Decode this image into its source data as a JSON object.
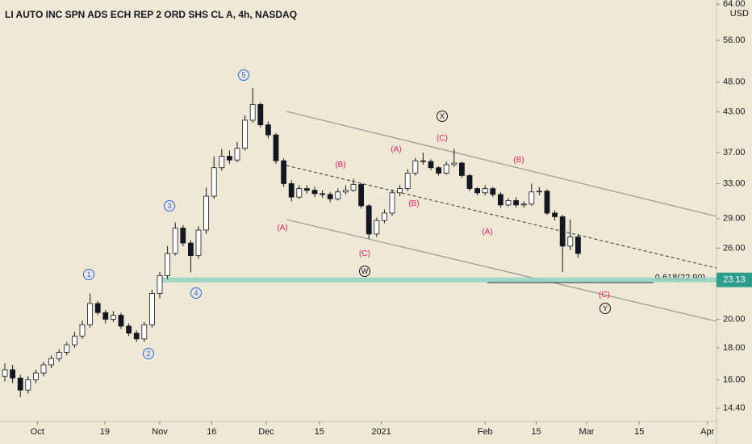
{
  "chart_data": {
    "type": "candlestick",
    "title": "LI AUTO INC SPN ADS ECH REP 2 ORD SHS CL A, 4h, NASDAQ",
    "currency": "USD",
    "log_scale": true,
    "up_color": "#ffffff",
    "down_color": "#131722",
    "open": [
      16.2,
      16.6,
      16.1,
      15.4,
      16.0,
      16.4,
      16.9,
      17.3,
      17.7,
      18.2,
      18.8,
      19.6,
      21.2,
      20.5,
      20.0,
      20.3,
      19.5,
      19.0,
      18.6,
      19.6,
      22.0,
      23.5,
      25.5,
      28.0,
      26.5,
      25.3,
      27.8,
      31.5,
      35.0,
      36.5,
      36.0,
      37.6,
      41.7,
      44.2,
      41.0,
      39.5,
      35.9,
      33.0,
      31.4,
      32.4,
      32.2,
      31.8,
      31.7,
      31.2,
      32.0,
      32.2,
      32.9,
      30.4,
      27.4,
      28.8,
      29.6,
      31.9,
      32.4,
      34.3,
      35.9,
      35.8,
      35.0,
      34.3,
      35.4,
      35.6,
      34.0,
      32.4,
      31.9,
      32.4,
      31.7,
      30.5,
      31.0,
      30.5,
      30.6,
      32.0,
      32.1,
      29.6,
      29.2,
      26.2,
      27.1
    ],
    "high": [
      17.0,
      16.9,
      16.3,
      16.2,
      16.6,
      17.1,
      17.5,
      17.9,
      18.4,
      19.1,
      19.9,
      22.0,
      21.4,
      20.7,
      20.6,
      20.5,
      19.7,
      19.2,
      19.8,
      22.3,
      23.8,
      26.2,
      28.6,
      28.3,
      26.8,
      28.2,
      32.5,
      36.5,
      37.5,
      37.3,
      38.5,
      42.5,
      47.0,
      44.5,
      41.5,
      39.8,
      36.2,
      33.4,
      32.8,
      32.8,
      32.6,
      32.2,
      32.0,
      32.4,
      32.8,
      33.6,
      33.1,
      30.6,
      29.1,
      30.0,
      32.3,
      32.8,
      34.8,
      36.3,
      37.0,
      36.1,
      35.2,
      35.8,
      37.5,
      35.8,
      34.2,
      32.6,
      32.8,
      32.6,
      32.0,
      31.3,
      31.4,
      30.9,
      33.0,
      32.6,
      32.3,
      29.9,
      29.4,
      28.9,
      27.4
    ],
    "low": [
      15.9,
      15.8,
      15.0,
      15.2,
      15.8,
      16.2,
      16.7,
      17.1,
      17.5,
      18.0,
      18.6,
      19.4,
      20.3,
      19.7,
      19.8,
      19.3,
      18.8,
      18.4,
      18.4,
      19.4,
      21.6,
      23.2,
      25.3,
      26.2,
      23.8,
      25.0,
      27.4,
      31.2,
      34.6,
      35.5,
      35.7,
      37.3,
      41.3,
      40.6,
      39.0,
      35.5,
      32.6,
      30.9,
      31.2,
      31.8,
      31.4,
      31.3,
      30.8,
      31.0,
      31.7,
      32.0,
      30.1,
      26.9,
      27.1,
      28.5,
      29.3,
      31.5,
      32.1,
      34.0,
      35.4,
      34.7,
      34.0,
      34.1,
      35.1,
      33.7,
      32.1,
      31.6,
      31.6,
      31.4,
      30.2,
      30.3,
      30.2,
      30.2,
      30.4,
      31.6,
      29.4,
      28.8,
      23.8,
      25.8,
      25.1
    ],
    "close": [
      16.6,
      16.1,
      15.4,
      16.0,
      16.4,
      16.9,
      17.3,
      17.7,
      18.2,
      18.8,
      19.6,
      21.2,
      20.5,
      20.0,
      20.3,
      19.5,
      19.0,
      18.6,
      19.6,
      22.0,
      23.5,
      25.5,
      28.0,
      26.5,
      25.3,
      27.8,
      31.5,
      35.0,
      36.5,
      36.0,
      37.6,
      41.7,
      44.2,
      41.0,
      39.5,
      35.9,
      33.0,
      31.4,
      32.4,
      32.2,
      31.8,
      31.7,
      31.2,
      32.0,
      32.2,
      32.9,
      30.4,
      27.4,
      28.8,
      29.6,
      31.9,
      32.4,
      34.3,
      35.9,
      35.8,
      35.0,
      34.3,
      35.4,
      35.6,
      34.0,
      32.4,
      31.9,
      32.4,
      31.7,
      30.5,
      31.0,
      30.5,
      30.6,
      32.0,
      32.1,
      29.6,
      29.2,
      26.2,
      27.1,
      25.5
    ],
    "xlim": [
      -0.625,
      91.77
    ],
    "xticks": [
      {
        "value": 4.2,
        "label": "Oct"
      },
      {
        "value": 12.9,
        "label": "19"
      },
      {
        "value": 20,
        "label": "Nov"
      },
      {
        "value": 26.7,
        "label": "16"
      },
      {
        "value": 33.75,
        "label": "Dec"
      },
      {
        "value": 40.6,
        "label": "15"
      },
      {
        "value": 48.6,
        "label": "2021"
      },
      {
        "value": 62,
        "label": "Feb"
      },
      {
        "value": 68.6,
        "label": "15"
      },
      {
        "value": 75.1,
        "label": "Mar"
      },
      {
        "value": 81.9,
        "label": "15"
      },
      {
        "value": 90.7,
        "label": "Apr"
      }
    ],
    "ylim": [
      13.8,
      65
    ],
    "yticks": [
      {
        "value": 14.4,
        "label": "14.40"
      },
      {
        "value": 16,
        "label": "16.00"
      },
      {
        "value": 18,
        "label": "18.00"
      },
      {
        "value": 20,
        "label": "20.00"
      },
      {
        "value": 26,
        "label": "26.00"
      },
      {
        "value": 29,
        "label": "29.00"
      },
      {
        "value": 33,
        "label": "33.00"
      },
      {
        "value": 37,
        "label": "37.00"
      },
      {
        "value": 43,
        "label": "43.00"
      },
      {
        "value": 48,
        "label": "48.00"
      },
      {
        "value": 56,
        "label": "56.00"
      },
      {
        "value": 64,
        "label": "64.00"
      }
    ],
    "last_price": 23.13,
    "fib_label": "0.618(22.90)",
    "annotations": [
      {
        "text": "1",
        "color": "#2962ff"
      },
      {
        "text": "2",
        "color": "#2962ff"
      },
      {
        "text": "3",
        "color": "#2962ff"
      },
      {
        "text": "4",
        "color": "#2962ff"
      },
      {
        "text": "5",
        "color": "#2962ff"
      },
      {
        "text": "(A)",
        "color": "#e91e63"
      },
      {
        "text": "(B)",
        "color": "#e91e63"
      },
      {
        "text": "(C)",
        "color": "#e91e63"
      },
      {
        "text": "W",
        "color": "#131722"
      },
      {
        "text": "(A)",
        "color": "#e91e63"
      },
      {
        "text": "(B)",
        "color": "#e91e63"
      },
      {
        "text": "(C)",
        "color": "#e91e63"
      },
      {
        "text": "X",
        "color": "#131722"
      },
      {
        "text": "(A)",
        "color": "#e91e63"
      },
      {
        "text": "(B)",
        "color": "#e91e63"
      },
      {
        "text": "(C)",
        "color": "#e91e63"
      },
      {
        "text": "Y",
        "color": "#131722"
      }
    ]
  }
}
